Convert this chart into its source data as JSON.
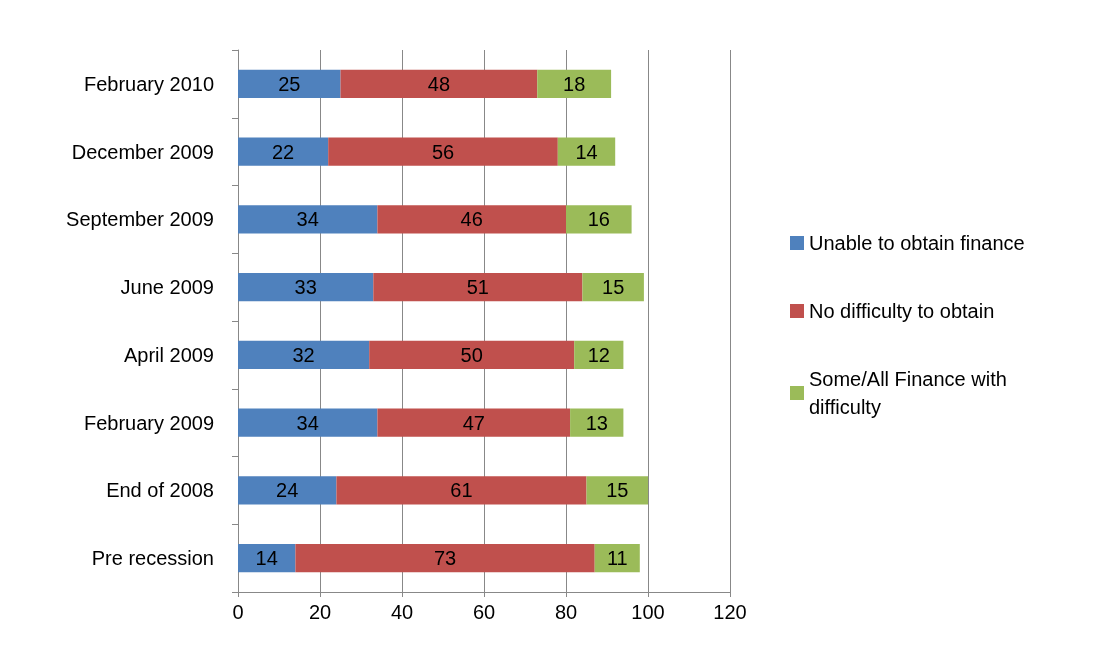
{
  "chart_data": {
    "type": "bar",
    "orientation": "horizontal",
    "stacked": true,
    "data_labels": true,
    "grid": "x",
    "legend": "right",
    "categories": [
      "February 2010",
      "December 2009",
      "September 2009",
      "June 2009",
      "April 2009",
      "February 2009",
      "End of 2008",
      "Pre recession"
    ],
    "series": [
      {
        "name": "Unable to obtain finance",
        "color": "#4f81bd",
        "values": [
          25,
          22,
          34,
          33,
          32,
          34,
          24,
          14
        ]
      },
      {
        "name": "No difficulty to obtain",
        "color": "#c0504d",
        "values": [
          48,
          56,
          46,
          51,
          50,
          47,
          61,
          73
        ]
      },
      {
        "name": "Some/All Finance with difficulty",
        "color": "#9bbb59",
        "values": [
          18,
          14,
          16,
          15,
          12,
          13,
          15,
          11
        ]
      }
    ],
    "xlim": [
      0,
      120
    ],
    "xticks": [
      0,
      20,
      40,
      60,
      80,
      100,
      120
    ]
  }
}
